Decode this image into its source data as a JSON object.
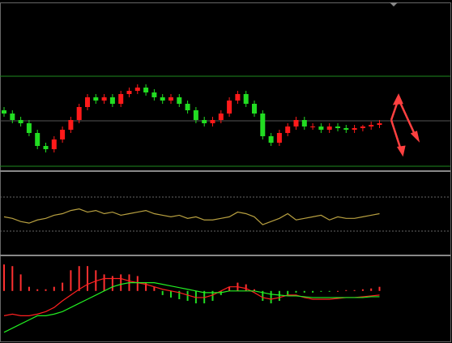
{
  "chart_data": [
    {
      "type": "candlestick",
      "up_color": "#ff1a1a",
      "down_color": "#22dd22",
      "ylim": [
        0,
        100
      ],
      "open": [
        36,
        34,
        30,
        28,
        22,
        14,
        12,
        18,
        24,
        30,
        38,
        44,
        42,
        44,
        40,
        46,
        48,
        50,
        47,
        44,
        42,
        44,
        40,
        36,
        30,
        28,
        30,
        34,
        42,
        46,
        40,
        34,
        20,
        16,
        22,
        26,
        30,
        26,
        26,
        24,
        26,
        25,
        24,
        25,
        26,
        27
      ],
      "high": [
        38,
        36,
        32,
        30,
        24,
        16,
        20,
        26,
        32,
        40,
        46,
        46,
        46,
        46,
        48,
        50,
        52,
        52,
        49,
        46,
        46,
        46,
        42,
        38,
        32,
        32,
        36,
        44,
        48,
        48,
        42,
        36,
        22,
        24,
        28,
        32,
        32,
        28,
        28,
        28,
        28,
        27,
        27,
        27,
        29,
        30
      ],
      "low": [
        32,
        28,
        26,
        20,
        12,
        10,
        10,
        16,
        22,
        28,
        36,
        40,
        40,
        38,
        38,
        44,
        46,
        45,
        42,
        40,
        40,
        38,
        34,
        28,
        26,
        26,
        28,
        32,
        40,
        38,
        32,
        18,
        14,
        14,
        20,
        24,
        24,
        24,
        22,
        22,
        23,
        22,
        22,
        23,
        24,
        25
      ],
      "close": [
        34,
        30,
        28,
        22,
        14,
        12,
        18,
        24,
        30,
        38,
        44,
        42,
        44,
        40,
        46,
        48,
        50,
        47,
        44,
        42,
        44,
        40,
        36,
        30,
        28,
        30,
        34,
        42,
        46,
        40,
        34,
        20,
        16,
        22,
        26,
        30,
        26,
        26,
        24,
        26,
        25,
        24,
        25,
        26,
        27,
        28
      ]
    },
    {
      "type": "line",
      "color": "#b8a040",
      "ylim": [
        0,
        100
      ],
      "values": [
        46,
        44,
        40,
        38,
        42,
        44,
        48,
        50,
        54,
        56,
        52,
        54,
        50,
        52,
        48,
        50,
        52,
        54,
        50,
        48,
        46,
        48,
        44,
        46,
        42,
        42,
        44,
        46,
        52,
        50,
        46,
        36,
        40,
        44,
        50,
        42,
        44,
        46,
        48,
        42,
        46,
        44,
        44,
        46,
        48,
        50
      ]
    },
    {
      "type": "macd",
      "ylim": [
        -0.6,
        0.4
      ],
      "up_color": "#ff3030",
      "down_color": "#22dd22",
      "histogram": [
        0.32,
        0.3,
        0.2,
        0.05,
        0.02,
        0.02,
        0.05,
        0.1,
        0.25,
        0.3,
        0.3,
        0.25,
        0.2,
        0.18,
        0.2,
        0.2,
        0.18,
        0.1,
        0.05,
        -0.05,
        -0.08,
        -0.1,
        -0.12,
        -0.15,
        -0.15,
        -0.12,
        -0.05,
        0.05,
        0.1,
        0.08,
        0.02,
        -0.12,
        -0.15,
        -0.12,
        -0.05,
        -0.02,
        -0.02,
        -0.02,
        -0.01,
        -0.01,
        0.0,
        0.01,
        0.01,
        0.02,
        0.03,
        0.05
      ],
      "series": [
        {
          "color": "#ff2020",
          "values": [
            -0.3,
            -0.28,
            -0.3,
            -0.3,
            -0.28,
            -0.25,
            -0.2,
            -0.12,
            -0.05,
            0.02,
            0.08,
            0.12,
            0.15,
            0.15,
            0.15,
            0.12,
            0.1,
            0.08,
            0.05,
            0.02,
            0.0,
            -0.02,
            -0.05,
            -0.08,
            -0.08,
            -0.05,
            0.0,
            0.05,
            0.05,
            0.03,
            -0.02,
            -0.08,
            -0.1,
            -0.08,
            -0.05,
            -0.05,
            -0.08,
            -0.1,
            -0.1,
            -0.1,
            -0.09,
            -0.08,
            -0.08,
            -0.07,
            -0.06,
            -0.05
          ]
        },
        {
          "color": "#22ee22",
          "values": [
            -0.5,
            -0.45,
            -0.4,
            -0.35,
            -0.3,
            -0.3,
            -0.28,
            -0.25,
            -0.2,
            -0.15,
            -0.1,
            -0.05,
            0.0,
            0.05,
            0.08,
            0.1,
            0.1,
            0.1,
            0.1,
            0.08,
            0.06,
            0.04,
            0.02,
            0.0,
            -0.02,
            -0.02,
            -0.02,
            0.0,
            0.0,
            0.0,
            0.0,
            -0.02,
            -0.04,
            -0.05,
            -0.06,
            -0.06,
            -0.07,
            -0.08,
            -0.08,
            -0.08,
            -0.08,
            -0.08,
            -0.08,
            -0.08,
            -0.07,
            -0.07
          ]
        }
      ]
    }
  ]
}
